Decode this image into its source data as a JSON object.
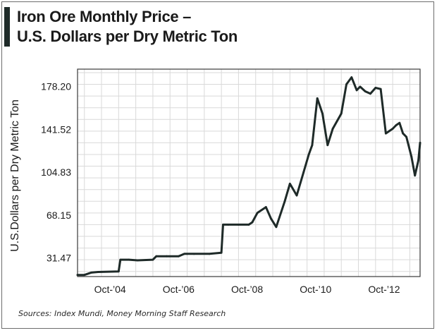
{
  "title_line1": "Iron Ore Monthly Price –",
  "title_line2": "U.S. Dollars per Dry Metric Ton",
  "source": "Sources: Index Mundi, Money Morning Staff Research",
  "colors": {
    "line": "#1e2a28",
    "grid": "#d9d9d9",
    "frame": "#3a3a3a",
    "accent_bar": "#1e2a28"
  },
  "chart_data": {
    "type": "line",
    "title": "Iron Ore Monthly Price – U.S. Dollars per Dry Metric Ton",
    "xlabel": "",
    "ylabel": "U.S.Dollars per Dry Metric Ton",
    "xlim": [
      2003.8,
      2013.8
    ],
    "ylim": [
      15.6,
      193.0
    ],
    "grid": true,
    "yticks": [
      31.47,
      68.15,
      104.83,
      141.52,
      178.2
    ],
    "yticklabels": [
      "31.47",
      "68.15",
      "104.83",
      "141.52",
      "178.20"
    ],
    "xticks": [
      2004.75,
      2006.75,
      2008.75,
      2010.75,
      2012.75
    ],
    "xticklabels": [
      "Oct-’04",
      "Oct-’06",
      "Oct-’08",
      "Oct-’10",
      "Oct-’12"
    ],
    "series": [
      {
        "name": "Iron Ore Monthly Price",
        "x": [
          2003.8,
          2004.0,
          2004.2,
          2004.4,
          2005.0,
          2005.05,
          2005.3,
          2005.55,
          2006.0,
          2006.1,
          2006.4,
          2006.75,
          2006.92,
          2007.0,
          2007.2,
          2007.65,
          2008.0,
          2008.05,
          2008.2,
          2008.5,
          2008.8,
          2008.9,
          2009.05,
          2009.3,
          2009.45,
          2009.6,
          2009.85,
          2010.0,
          2010.2,
          2010.4,
          2010.55,
          2010.65,
          2010.8,
          2010.95,
          2011.1,
          2011.25,
          2011.5,
          2011.65,
          2011.8,
          2011.95,
          2012.05,
          2012.2,
          2012.35,
          2012.5,
          2012.65,
          2012.8,
          2012.9,
          2013.0,
          2013.1,
          2013.2,
          2013.3,
          2013.4,
          2013.55,
          2013.65,
          2013.75,
          2013.8
        ],
        "values": [
          17.0,
          17.0,
          19.0,
          19.5,
          20.0,
          30.0,
          30.0,
          29.5,
          30.0,
          33.0,
          33.0,
          33.0,
          35.0,
          35.0,
          35.0,
          35.0,
          36.0,
          60.0,
          60.0,
          60.0,
          60.0,
          62.0,
          70.0,
          75.0,
          65.0,
          58.0,
          80.0,
          95.0,
          85.0,
          105.0,
          120.0,
          128.0,
          168.0,
          155.0,
          128.0,
          142.0,
          155.0,
          180.0,
          186.0,
          175.0,
          178.0,
          174.0,
          172.0,
          177.0,
          176.0,
          138.0,
          140.0,
          142.0,
          145.0,
          147.0,
          138.0,
          135.0,
          118.0,
          102.0,
          115.0,
          130.0
        ]
      }
    ]
  }
}
